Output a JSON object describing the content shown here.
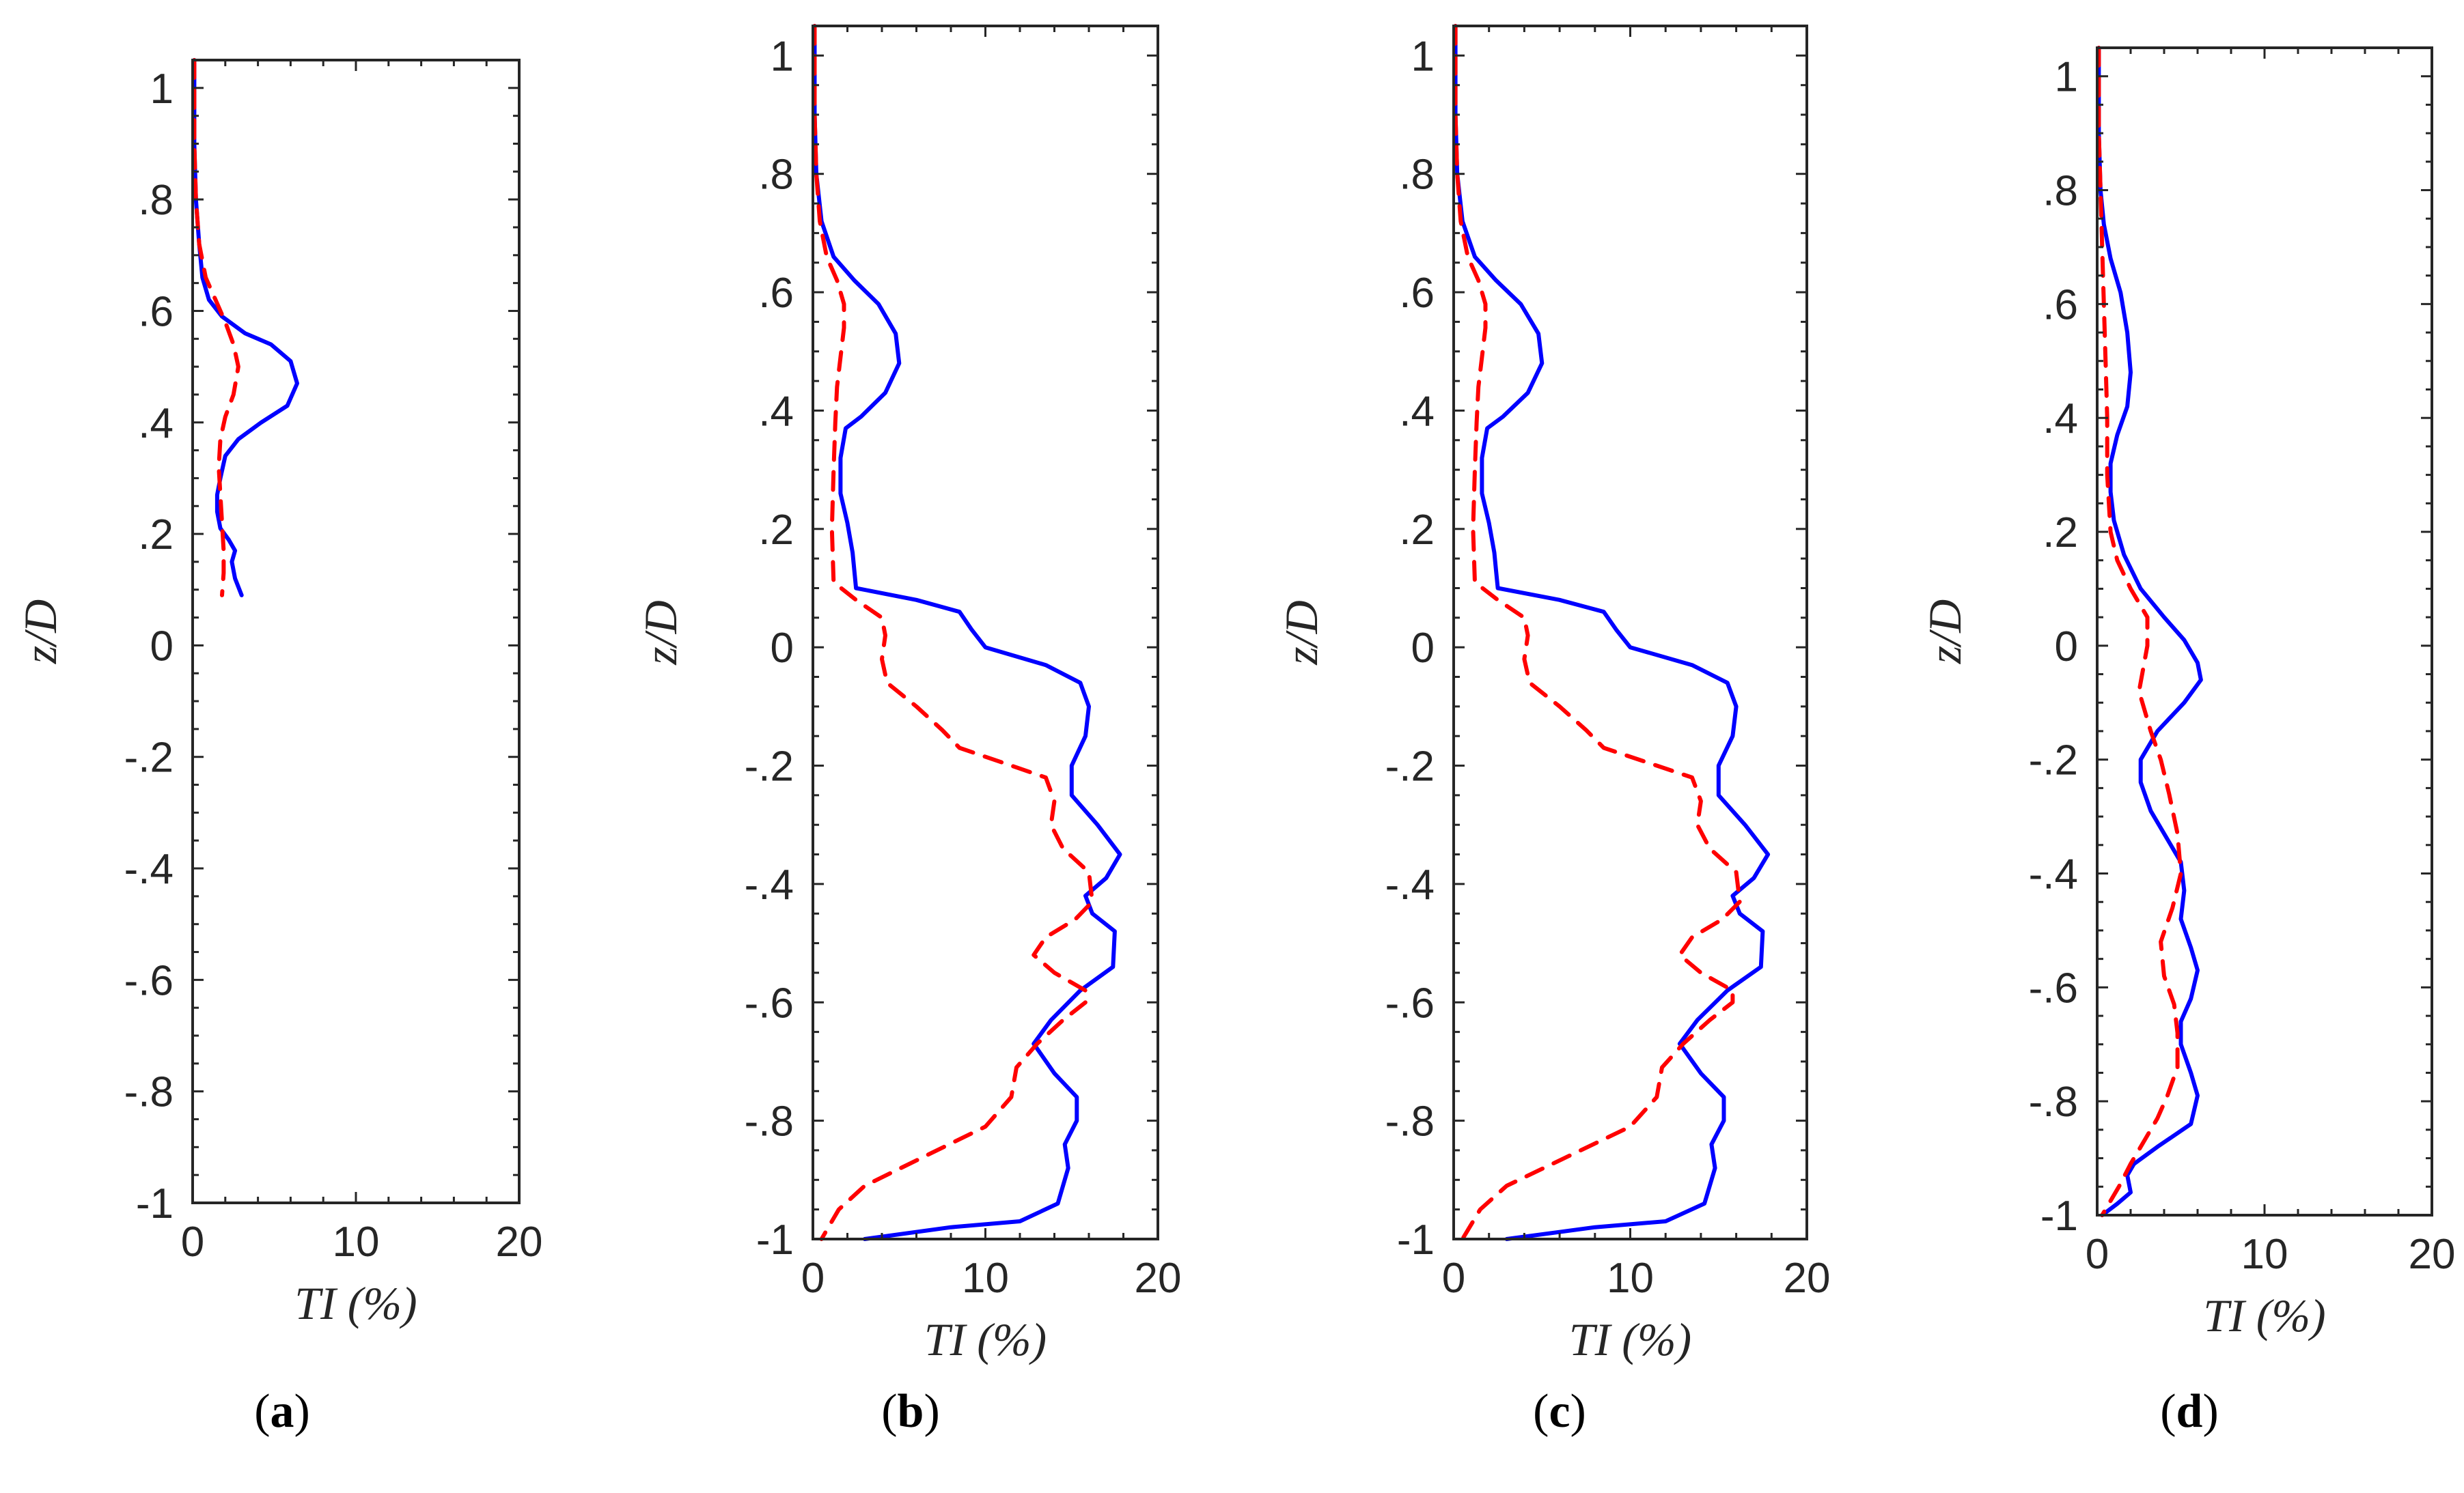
{
  "colors": {
    "series_a": "#0000ff",
    "series_b": "#ff0000",
    "axes": "#262626"
  },
  "chart_data": [
    {
      "id": "a",
      "type": "line",
      "panel_label": "a",
      "xlabel": "TI (%)",
      "ylabel": "z/D",
      "xlim": [
        0,
        20
      ],
      "ylim": [
        -1,
        1.05
      ],
      "x_ticks": [
        0,
        10,
        20
      ],
      "y_ticks": [
        1,
        0.8,
        0.6,
        0.4,
        0.2,
        0,
        -0.2,
        -0.4,
        -0.6,
        -0.8,
        -1
      ],
      "series": [
        {
          "name": "solid",
          "color": "#0000ff",
          "style": "solid",
          "x": [
            0.1,
            0.1,
            0.2,
            0.4,
            0.6,
            1.0,
            1.8,
            3.2,
            4.8,
            6.0,
            6.4,
            5.8,
            4.2,
            2.8,
            2.0,
            1.7,
            1.5,
            1.5,
            1.7,
            2.2,
            2.6,
            2.4,
            2.6,
            3.0
          ],
          "z": [
            1.05,
            0.9,
            0.8,
            0.72,
            0.66,
            0.62,
            0.59,
            0.56,
            0.54,
            0.51,
            0.47,
            0.43,
            0.4,
            0.37,
            0.34,
            0.3,
            0.27,
            0.24,
            0.21,
            0.19,
            0.17,
            0.15,
            0.12,
            0.09
          ]
        },
        {
          "name": "dashed",
          "color": "#ff0000",
          "style": "dashed",
          "x": [
            0.1,
            0.1,
            0.2,
            0.4,
            0.8,
            1.4,
            2.0,
            2.5,
            2.8,
            2.5,
            2.0,
            1.7,
            1.6,
            1.7,
            1.8,
            1.9,
            1.9,
            1.8
          ],
          "z": [
            1.05,
            0.9,
            0.8,
            0.72,
            0.66,
            0.62,
            0.58,
            0.54,
            0.5,
            0.45,
            0.41,
            0.37,
            0.32,
            0.27,
            0.22,
            0.17,
            0.13,
            0.09
          ]
        }
      ]
    },
    {
      "id": "b",
      "type": "line",
      "panel_label": "b",
      "xlabel": "TI (%)",
      "ylabel": "z/D",
      "xlim": [
        0,
        20
      ],
      "ylim": [
        -1,
        1.05
      ],
      "x_ticks": [
        0,
        10,
        20
      ],
      "y_ticks": [
        1,
        0.8,
        0.6,
        0.4,
        0.2,
        0,
        -0.2,
        -0.4,
        -0.6,
        -0.8,
        -1
      ],
      "series": [
        {
          "name": "solid",
          "color": "#0000ff",
          "style": "solid",
          "x": [
            0.1,
            0.1,
            0.2,
            0.5,
            1.2,
            2.4,
            3.8,
            4.8,
            5.0,
            4.2,
            2.8,
            1.9,
            1.6,
            1.6,
            2.0,
            2.3,
            2.4,
            2.5,
            6.0,
            8.5,
            9.2,
            10.0,
            13.5,
            15.5,
            16.0,
            15.8,
            15.0,
            15.0,
            16.5,
            17.8,
            17.0,
            15.8,
            16.2,
            17.5,
            17.4,
            15.5,
            13.8,
            12.8,
            14.0,
            15.3,
            15.3,
            14.6,
            14.8,
            14.2,
            12.0,
            8.0,
            3.0
          ],
          "z": [
            1.05,
            0.9,
            0.8,
            0.72,
            0.66,
            0.62,
            0.58,
            0.53,
            0.48,
            0.43,
            0.39,
            0.37,
            0.32,
            0.26,
            0.21,
            0.16,
            0.13,
            0.1,
            0.08,
            0.06,
            0.03,
            0.0,
            -0.03,
            -0.06,
            -0.1,
            -0.15,
            -0.2,
            -0.25,
            -0.3,
            -0.35,
            -0.39,
            -0.42,
            -0.45,
            -0.48,
            -0.54,
            -0.58,
            -0.63,
            -0.67,
            -0.72,
            -0.76,
            -0.8,
            -0.84,
            -0.88,
            -0.94,
            -0.97,
            -0.98,
            -1.0
          ]
        },
        {
          "name": "dashed",
          "color": "#ff0000",
          "style": "dashed",
          "x": [
            0.1,
            0.1,
            0.2,
            0.4,
            0.8,
            1.4,
            1.8,
            1.8,
            1.6,
            1.4,
            1.3,
            1.2,
            1.1,
            1.2,
            2.5,
            4.0,
            4.2,
            4.0,
            4.3,
            6.0,
            7.5,
            8.5,
            11.5,
            13.5,
            14.0,
            13.8,
            14.5,
            16.0,
            16.2,
            15.2,
            13.5,
            12.8,
            14.0,
            15.8,
            15.8,
            14.5,
            13.0,
            11.8,
            11.5,
            10.0,
            6.5,
            3.0,
            1.5,
            0.5
          ],
          "z": [
            1.05,
            0.9,
            0.8,
            0.72,
            0.66,
            0.62,
            0.58,
            0.54,
            0.49,
            0.44,
            0.38,
            0.3,
            0.2,
            0.11,
            0.08,
            0.05,
            0.02,
            -0.02,
            -0.06,
            -0.1,
            -0.14,
            -0.17,
            -0.2,
            -0.22,
            -0.26,
            -0.3,
            -0.34,
            -0.38,
            -0.43,
            -0.46,
            -0.49,
            -0.52,
            -0.55,
            -0.58,
            -0.6,
            -0.63,
            -0.67,
            -0.71,
            -0.76,
            -0.81,
            -0.86,
            -0.91,
            -0.95,
            -1.0
          ]
        }
      ]
    },
    {
      "id": "c",
      "type": "line",
      "panel_label": "c",
      "xlabel": "TI (%)",
      "ylabel": "z/D",
      "xlim": [
        0,
        20
      ],
      "ylim": [
        -1,
        1.05
      ],
      "x_ticks": [
        0,
        10,
        20
      ],
      "y_ticks": [
        1,
        0.8,
        0.6,
        0.4,
        0.2,
        0,
        -0.2,
        -0.4,
        -0.6,
        -0.8,
        -1
      ],
      "series": [
        {
          "name": "solid",
          "color": "#0000ff",
          "style": "solid",
          "x": [
            0.1,
            0.1,
            0.2,
            0.5,
            1.2,
            2.4,
            3.8,
            4.8,
            5.0,
            4.2,
            2.8,
            1.9,
            1.6,
            1.6,
            2.0,
            2.3,
            2.4,
            2.5,
            6.0,
            8.5,
            9.2,
            10.0,
            13.5,
            15.5,
            16.0,
            15.8,
            15.0,
            15.0,
            16.5,
            17.8,
            17.0,
            15.8,
            16.2,
            17.5,
            17.4,
            15.5,
            13.8,
            12.8,
            14.0,
            15.3,
            15.3,
            14.6,
            14.8,
            14.2,
            12.0,
            8.0,
            3.0
          ],
          "z": [
            1.05,
            0.9,
            0.8,
            0.72,
            0.66,
            0.62,
            0.58,
            0.53,
            0.48,
            0.43,
            0.39,
            0.37,
            0.32,
            0.26,
            0.21,
            0.16,
            0.13,
            0.1,
            0.08,
            0.06,
            0.03,
            0.0,
            -0.03,
            -0.06,
            -0.1,
            -0.15,
            -0.2,
            -0.25,
            -0.3,
            -0.35,
            -0.39,
            -0.42,
            -0.45,
            -0.48,
            -0.54,
            -0.58,
            -0.63,
            -0.67,
            -0.72,
            -0.76,
            -0.8,
            -0.84,
            -0.88,
            -0.94,
            -0.97,
            -0.98,
            -1.0
          ]
        },
        {
          "name": "dashed",
          "color": "#ff0000",
          "style": "dashed",
          "x": [
            0.1,
            0.1,
            0.2,
            0.4,
            0.8,
            1.4,
            1.8,
            1.8,
            1.6,
            1.4,
            1.3,
            1.2,
            1.1,
            1.2,
            2.5,
            4.0,
            4.2,
            4.0,
            4.3,
            6.0,
            7.5,
            8.5,
            11.5,
            13.5,
            14.0,
            13.8,
            14.5,
            16.0,
            16.2,
            15.2,
            13.5,
            12.8,
            14.0,
            15.8,
            15.8,
            14.5,
            13.0,
            11.8,
            11.5,
            10.0,
            6.5,
            3.0,
            1.5,
            0.5
          ],
          "z": [
            1.05,
            0.9,
            0.8,
            0.72,
            0.66,
            0.62,
            0.58,
            0.54,
            0.49,
            0.44,
            0.38,
            0.3,
            0.2,
            0.11,
            0.08,
            0.05,
            0.02,
            -0.02,
            -0.06,
            -0.1,
            -0.14,
            -0.17,
            -0.2,
            -0.22,
            -0.26,
            -0.3,
            -0.34,
            -0.38,
            -0.43,
            -0.46,
            -0.49,
            -0.52,
            -0.55,
            -0.58,
            -0.6,
            -0.63,
            -0.67,
            -0.71,
            -0.76,
            -0.81,
            -0.86,
            -0.91,
            -0.95,
            -1.0
          ]
        }
      ]
    },
    {
      "id": "d",
      "type": "line",
      "panel_label": "d",
      "xlabel": "TI (%)",
      "ylabel": "z/D",
      "xlim": [
        0,
        20
      ],
      "ylim": [
        -1,
        1.05
      ],
      "x_ticks": [
        0,
        10,
        20
      ],
      "y_ticks": [
        1,
        0.8,
        0.6,
        0.4,
        0.2,
        0,
        -0.2,
        -0.4,
        -0.6,
        -0.8,
        -1
      ],
      "series": [
        {
          "name": "solid",
          "color": "#0000ff",
          "style": "solid",
          "x": [
            0.1,
            0.1,
            0.2,
            0.4,
            0.8,
            1.4,
            1.8,
            2.0,
            1.8,
            1.2,
            0.8,
            0.8,
            1.0,
            1.6,
            2.6,
            4.0,
            5.2,
            6.0,
            6.2,
            5.2,
            3.6,
            2.6,
            2.6,
            3.2,
            4.2,
            5.0,
            5.2,
            5.0,
            5.6,
            6.0,
            5.6,
            5.0,
            5.0,
            5.6,
            6.0,
            5.6,
            3.6,
            2.2,
            1.8,
            2.0,
            1.2,
            0.3
          ],
          "z": [
            1.05,
            0.9,
            0.8,
            0.74,
            0.68,
            0.62,
            0.55,
            0.48,
            0.42,
            0.37,
            0.32,
            0.27,
            0.22,
            0.16,
            0.1,
            0.05,
            0.01,
            -0.03,
            -0.06,
            -0.1,
            -0.15,
            -0.2,
            -0.24,
            -0.29,
            -0.34,
            -0.38,
            -0.43,
            -0.48,
            -0.53,
            -0.57,
            -0.62,
            -0.66,
            -0.7,
            -0.75,
            -0.79,
            -0.84,
            -0.88,
            -0.91,
            -0.93,
            -0.96,
            -0.98,
            -1.0
          ]
        },
        {
          "name": "dashed",
          "color": "#ff0000",
          "style": "dashed",
          "x": [
            0.1,
            0.1,
            0.2,
            0.3,
            0.4,
            0.5,
            0.6,
            0.6,
            0.8,
            1.2,
            2.0,
            3.0,
            3.0,
            2.5,
            3.2,
            3.8,
            4.3,
            4.8,
            5.0,
            4.5,
            3.8,
            4.0,
            4.6,
            4.8,
            4.8,
            4.2,
            3.6,
            2.8,
            2.0,
            1.3,
            0.3
          ],
          "z": [
            1.05,
            0.9,
            0.8,
            0.7,
            0.6,
            0.5,
            0.4,
            0.3,
            0.2,
            0.15,
            0.1,
            0.05,
            0.0,
            -0.08,
            -0.15,
            -0.2,
            -0.26,
            -0.33,
            -0.4,
            -0.46,
            -0.52,
            -0.58,
            -0.63,
            -0.68,
            -0.74,
            -0.79,
            -0.83,
            -0.87,
            -0.91,
            -0.95,
            -1.0
          ]
        }
      ]
    }
  ]
}
